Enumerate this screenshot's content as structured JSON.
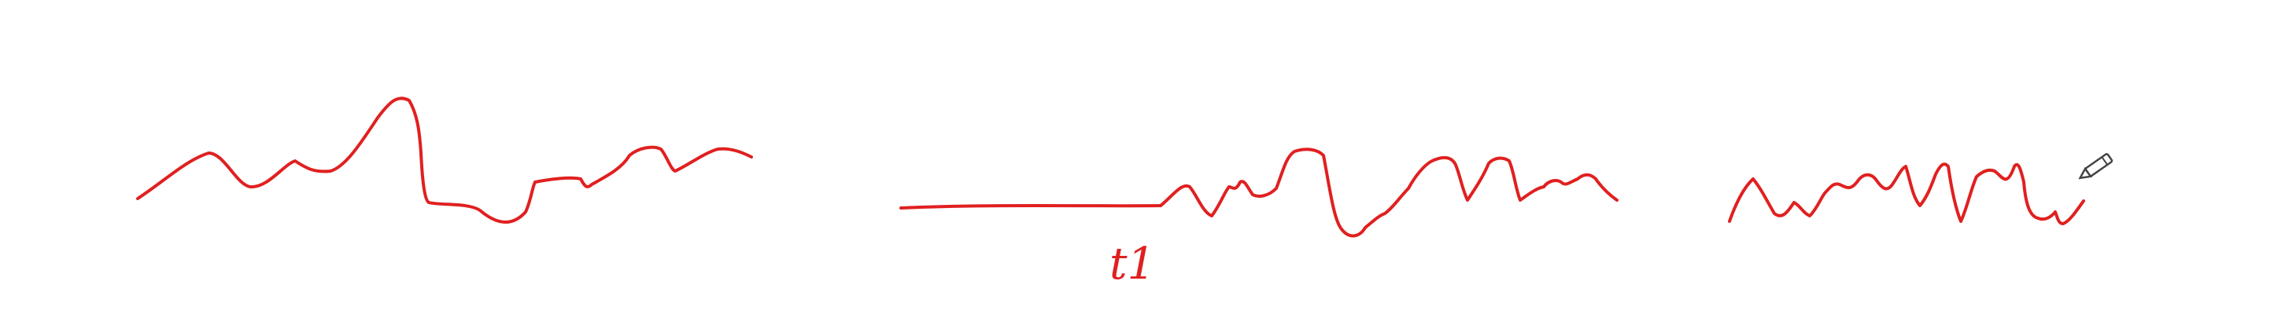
{
  "annotation": {
    "time_label": "t1"
  },
  "colors": {
    "ink": "#e02020",
    "pencil_icon": "#444444"
  },
  "icons": {
    "cursor": "pencil-icon"
  }
}
